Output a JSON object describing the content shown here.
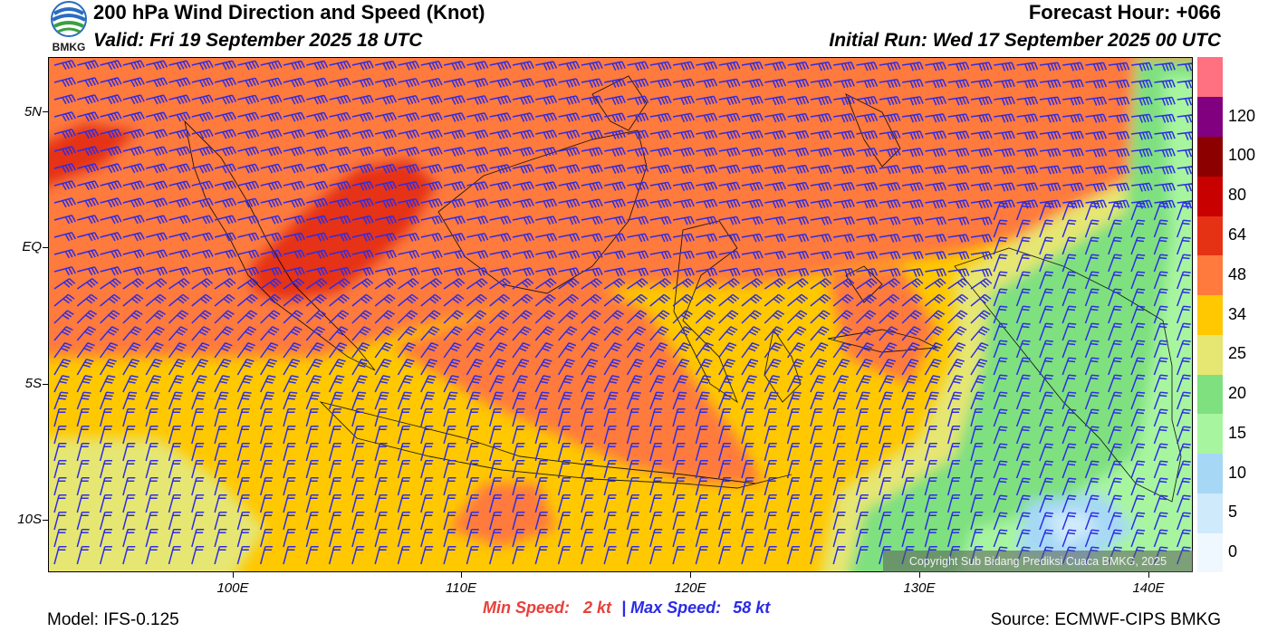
{
  "logo": {
    "text": "BMKG"
  },
  "header": {
    "title": "200 hPa Wind Direction and Speed (Knot)",
    "forecast_hour": "Forecast Hour: +066",
    "valid": "Valid: Fri 19 September 2025 18 UTC",
    "initial_run": "Initial Run: Wed 17 September 2025 00 UTC"
  },
  "axes": {
    "lat_labels": [
      "5N",
      "EQ",
      "5S",
      "10S"
    ],
    "lon_labels": [
      "100E",
      "110E",
      "120E",
      "130E",
      "140E"
    ]
  },
  "colorbar": {
    "labels": [
      "0",
      "5",
      "10",
      "15",
      "20",
      "25",
      "34",
      "48",
      "64",
      "80",
      "100",
      "120"
    ],
    "colors": [
      "#f0f8ff",
      "#cfeafb",
      "#a6d8f6",
      "#a8f5a0",
      "#7fe07f",
      "#e6e673",
      "#ffc800",
      "#ff7a3c",
      "#e63214",
      "#c80000",
      "#8c0000",
      "#800080",
      "#ff7080"
    ]
  },
  "stats": {
    "min_label": "Min Speed:",
    "min_value": "2 kt",
    "separator": "|",
    "max_label": "Max Speed:",
    "max_value": "58 kt",
    "min_color": "#e8403a",
    "max_color": "#2a2ae8"
  },
  "footer": {
    "model": "Model: IFS-0.125",
    "source": "Source: ECMWF-CIPS BMKG",
    "copyright": "Copyright Sub Bidang Prediksi Cuaca BMKG, 2025"
  }
}
